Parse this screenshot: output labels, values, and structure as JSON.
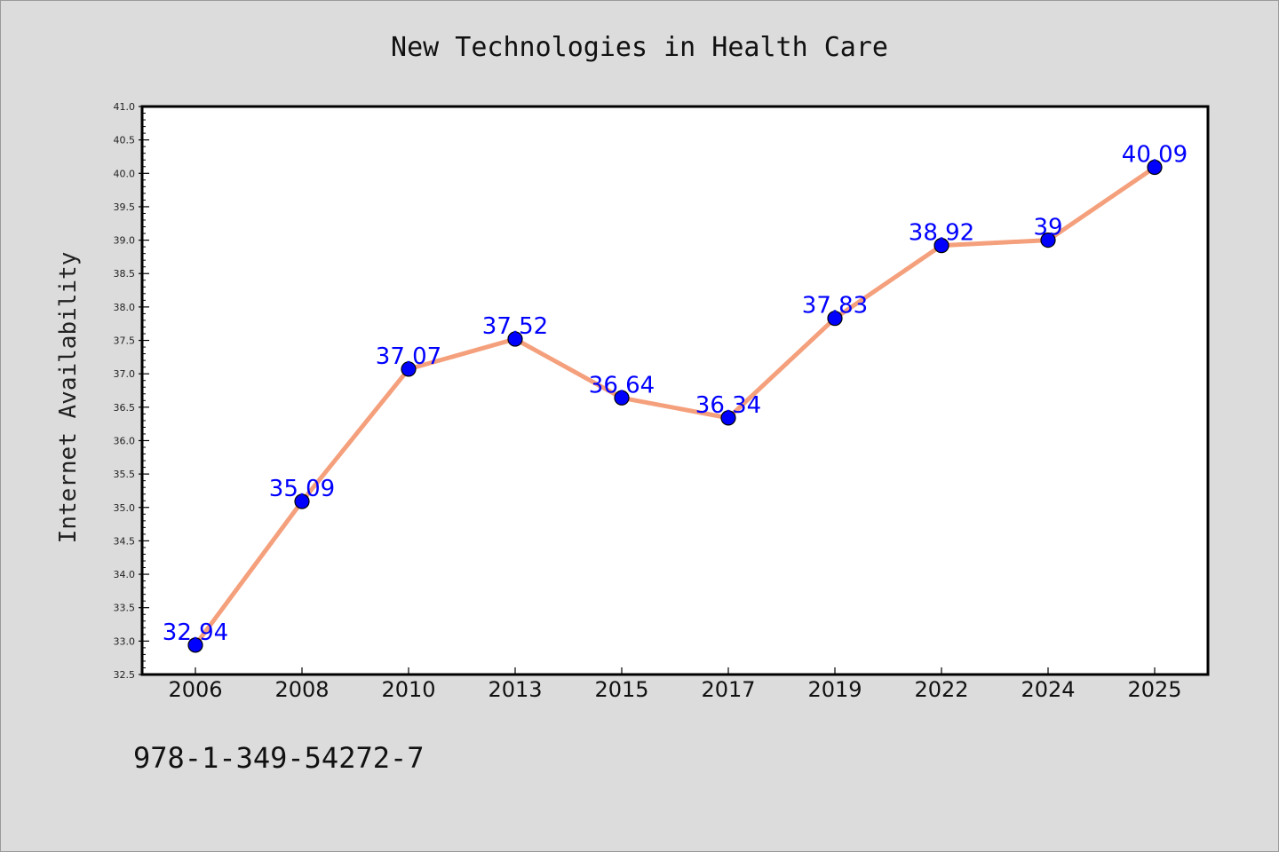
{
  "chart_data": {
    "type": "line",
    "title": "New Technologies in Health Care",
    "xlabel": "",
    "ylabel": "Internet Availability",
    "categories": [
      "2006",
      "2008",
      "2010",
      "2013",
      "2015",
      "2017",
      "2019",
      "2022",
      "2024",
      "2025"
    ],
    "series": [
      {
        "values": [
          32.94,
          35.09,
          37.07,
          37.52,
          36.64,
          36.34,
          37.83,
          38.92,
          39,
          40.09
        ],
        "labels": [
          "32.94",
          "35.09",
          "37.07",
          "37.52",
          "36.64",
          "36.34",
          "37.83",
          "38.92",
          "39",
          "40.09"
        ],
        "line_color": "#f5a07c",
        "marker_color": "#0000ff",
        "label_color": "#0000ff"
      }
    ],
    "ylim": [
      32.5,
      41.0
    ],
    "yticks": [
      "32.5",
      "33.0",
      "33.5",
      "34.0",
      "34.5",
      "35.0",
      "35.5",
      "36.0",
      "36.5",
      "37.0",
      "37.5",
      "38.0",
      "38.5",
      "39.0",
      "39.5",
      "40.0",
      "40.5",
      "41.0"
    ],
    "grid": false,
    "legend": "none"
  },
  "footnote": "978-1-349-54272-7",
  "colors": {
    "background": "#dcdcdc",
    "plot_background": "#ffffff",
    "axis": "#000000"
  }
}
